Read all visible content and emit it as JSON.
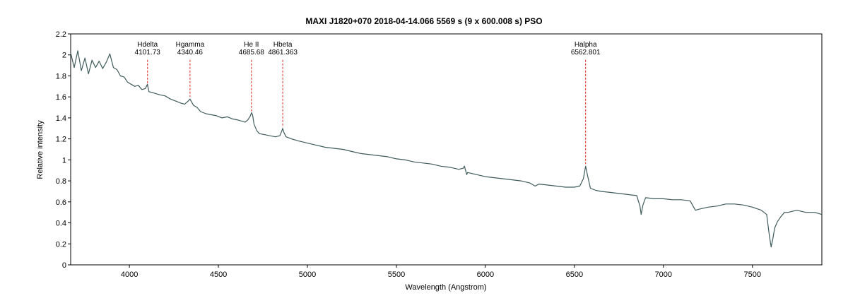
{
  "chart_data": {
    "type": "line",
    "title": "MAXI J1820+070   2018-04-14.066   5569 s (9 x 600.008 s)   PSO",
    "xlabel": "Wavelength (Angstrom)",
    "ylabel": "Relative intensity",
    "xlim": [
      3670,
      7890
    ],
    "ylim": [
      0,
      2.2
    ],
    "x_ticks": [
      4000,
      4500,
      5000,
      5500,
      6000,
      6500,
      7000,
      7500
    ],
    "y_ticks": [
      0,
      0.2,
      0.4,
      0.6,
      0.8,
      1,
      1.2,
      1.4,
      1.6,
      1.8,
      2,
      2.2
    ],
    "grid": false,
    "colors": {
      "spectrum": "#3f5a5a",
      "marker": "#e0201a"
    },
    "series": [
      {
        "x": [
          3670,
          3690,
          3710,
          3730,
          3750,
          3770,
          3790,
          3810,
          3830,
          3850,
          3870,
          3890,
          3910,
          3930,
          3950,
          3970,
          3990,
          4010,
          4030,
          4050,
          4070,
          4090,
          4101,
          4110,
          4130,
          4150,
          4170,
          4200,
          4230,
          4260,
          4290,
          4310,
          4330,
          4340,
          4360,
          4380,
          4400,
          4430,
          4460,
          4490,
          4520,
          4550,
          4580,
          4610,
          4630,
          4650,
          4665,
          4680,
          4686,
          4692,
          4700,
          4715,
          4730,
          4760,
          4790,
          4820,
          4845,
          4855,
          4861,
          4868,
          4880,
          4910,
          4950,
          5000,
          5050,
          5100,
          5150,
          5200,
          5250,
          5300,
          5350,
          5400,
          5450,
          5500,
          5550,
          5600,
          5650,
          5700,
          5750,
          5800,
          5850,
          5875,
          5882,
          5890,
          5895,
          5900,
          5950,
          6000,
          6050,
          6100,
          6150,
          6200,
          6250,
          6280,
          6300,
          6350,
          6400,
          6450,
          6500,
          6530,
          6550,
          6563,
          6575,
          6590,
          6620,
          6650,
          6700,
          6750,
          6800,
          6850,
          6868,
          6875,
          6885,
          6900,
          6950,
          7000,
          7050,
          7100,
          7150,
          7170,
          7180,
          7200,
          7250,
          7300,
          7350,
          7400,
          7450,
          7500,
          7550,
          7580,
          7595,
          7605,
          7615,
          7625,
          7640,
          7660,
          7680,
          7700,
          7750,
          7800,
          7850,
          7890
        ],
        "y": [
          2.02,
          1.88,
          2.04,
          1.85,
          1.97,
          1.82,
          1.95,
          1.88,
          1.94,
          1.87,
          1.93,
          2.01,
          1.88,
          1.86,
          1.8,
          1.79,
          1.74,
          1.72,
          1.7,
          1.71,
          1.67,
          1.68,
          1.72,
          1.65,
          1.64,
          1.63,
          1.62,
          1.61,
          1.58,
          1.56,
          1.54,
          1.53,
          1.56,
          1.58,
          1.52,
          1.5,
          1.46,
          1.44,
          1.43,
          1.42,
          1.4,
          1.41,
          1.39,
          1.38,
          1.37,
          1.36,
          1.38,
          1.42,
          1.45,
          1.43,
          1.34,
          1.28,
          1.25,
          1.24,
          1.23,
          1.22,
          1.23,
          1.27,
          1.3,
          1.26,
          1.22,
          1.2,
          1.18,
          1.16,
          1.14,
          1.12,
          1.11,
          1.1,
          1.08,
          1.06,
          1.05,
          1.04,
          1.03,
          1.01,
          1.0,
          0.98,
          0.97,
          0.96,
          0.94,
          0.93,
          0.91,
          0.92,
          0.94,
          0.89,
          0.86,
          0.88,
          0.86,
          0.84,
          0.83,
          0.82,
          0.81,
          0.8,
          0.78,
          0.75,
          0.77,
          0.76,
          0.75,
          0.74,
          0.74,
          0.75,
          0.82,
          0.94,
          0.84,
          0.73,
          0.71,
          0.7,
          0.69,
          0.68,
          0.67,
          0.66,
          0.56,
          0.48,
          0.57,
          0.64,
          0.63,
          0.63,
          0.62,
          0.62,
          0.61,
          0.55,
          0.52,
          0.53,
          0.55,
          0.56,
          0.58,
          0.58,
          0.57,
          0.55,
          0.52,
          0.48,
          0.28,
          0.17,
          0.25,
          0.35,
          0.41,
          0.46,
          0.5,
          0.5,
          0.52,
          0.5,
          0.5,
          0.48
        ]
      }
    ],
    "annotations": [
      {
        "name": "Hdelta",
        "wavelength": "4101.73",
        "x": 4101.73,
        "y_top": 2.02,
        "y_bottom": 1.7
      },
      {
        "name": "Hgamma",
        "wavelength": "4340.46",
        "x": 4340.46,
        "y_top": 2.02,
        "y_bottom": 1.6
      },
      {
        "name": "He II",
        "wavelength": "4685.68",
        "x": 4685.68,
        "y_top": 2.02,
        "y_bottom": 1.46
      },
      {
        "name": "Hbeta",
        "wavelength": "4861.363",
        "x": 4861.363,
        "y_top": 2.02,
        "y_bottom": 1.31
      },
      {
        "name": "Halpha",
        "wavelength": "6562.801",
        "x": 6562.801,
        "y_top": 2.02,
        "y_bottom": 0.96
      }
    ]
  }
}
